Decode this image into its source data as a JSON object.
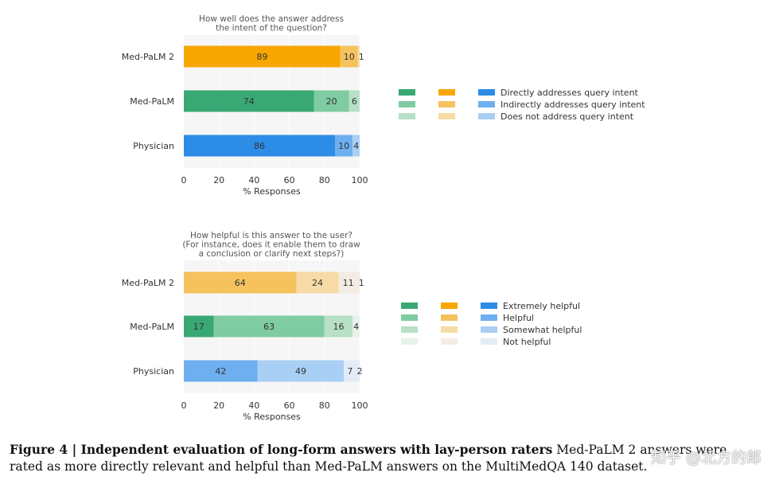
{
  "colors": {
    "green": [
      "#3aa874",
      "#7fcba2",
      "#b7e0c6",
      "#e6f2ea"
    ],
    "orange": [
      "#f7a700",
      "#f5c25e",
      "#f7dba6",
      "#f4ece3"
    ],
    "blue": [
      "#2c8ce6",
      "#6eaff0",
      "#a9cff4",
      "#e3ecf6"
    ],
    "text": "#333333",
    "axis_title": "#555555"
  },
  "chart_data": [
    {
      "type": "bar",
      "orientation": "horizontal",
      "stacked": true,
      "title": "How well does the answer address\nthe intent of the question?",
      "xlabel": "% Responses",
      "ylabel": "",
      "xlim": [
        0,
        100
      ],
      "xticks": [
        "0",
        "20",
        "40",
        "60",
        "80",
        "100"
      ],
      "categories": [
        "Med-PaLM 2",
        "Med-PaLM",
        "Physician"
      ],
      "category_palettes": [
        "orange",
        "green",
        "blue"
      ],
      "series": [
        {
          "name": "Directly addresses query intent",
          "values": [
            89,
            74,
            86
          ],
          "labels": [
            "89",
            "74",
            "86"
          ]
        },
        {
          "name": "Indirectly addresses query intent",
          "values": [
            10,
            20,
            10
          ],
          "labels": [
            "10",
            "20",
            "10"
          ]
        },
        {
          "name": "Does not address query intent",
          "values": [
            1,
            6,
            4
          ],
          "labels": [
            "1",
            "6",
            "4"
          ]
        }
      ],
      "legend": [
        "Directly addresses query intent",
        "Indirectly addresses query intent",
        "Does not address query intent"
      ],
      "legend_position": "right"
    },
    {
      "type": "bar",
      "orientation": "horizontal",
      "stacked": true,
      "title": "How helpful is this answer to the user?\n(For instance, does it enable them to draw\na conclusion or clarify next steps?)",
      "xlabel": "% Responses",
      "ylabel": "",
      "xlim": [
        0,
        100
      ],
      "xticks": [
        "0",
        "20",
        "40",
        "60",
        "80",
        "100"
      ],
      "categories": [
        "Med-PaLM 2",
        "Med-PaLM",
        "Physician"
      ],
      "category_palettes": [
        "orange",
        "green",
        "blue"
      ],
      "series": [
        {
          "name": "Extremely helpful",
          "values": [
            0,
            17,
            0
          ],
          "labels": [
            "",
            "17",
            ""
          ]
        },
        {
          "name": "Helpful",
          "values": [
            64,
            63,
            42
          ],
          "labels": [
            "64",
            "63",
            "42"
          ]
        },
        {
          "name": "Somewhat helpful",
          "values": [
            24,
            16,
            49
          ],
          "labels": [
            "24",
            "16",
            "49"
          ]
        },
        {
          "name": "Not helpful",
          "values": [
            11,
            4,
            7
          ],
          "labels": [
            "11",
            "4",
            "7"
          ]
        },
        {
          "name": "",
          "values": [
            1,
            0,
            2
          ],
          "labels": [
            "1",
            "",
            "2"
          ]
        }
      ],
      "legend": [
        "Extremely helpful",
        "Helpful",
        "Somewhat helpful",
        "Not helpful"
      ],
      "legend_position": "right"
    }
  ],
  "caption": {
    "bold": "Figure 4 | Independent evaluation of long-form answers with lay-person raters",
    "text": " Med-PaLM 2 answers were rated as more directly relevant and helpful than Med-PaLM answers on the MultiMedQA 140 dataset."
  },
  "watermark": "知乎 @北方的郎"
}
